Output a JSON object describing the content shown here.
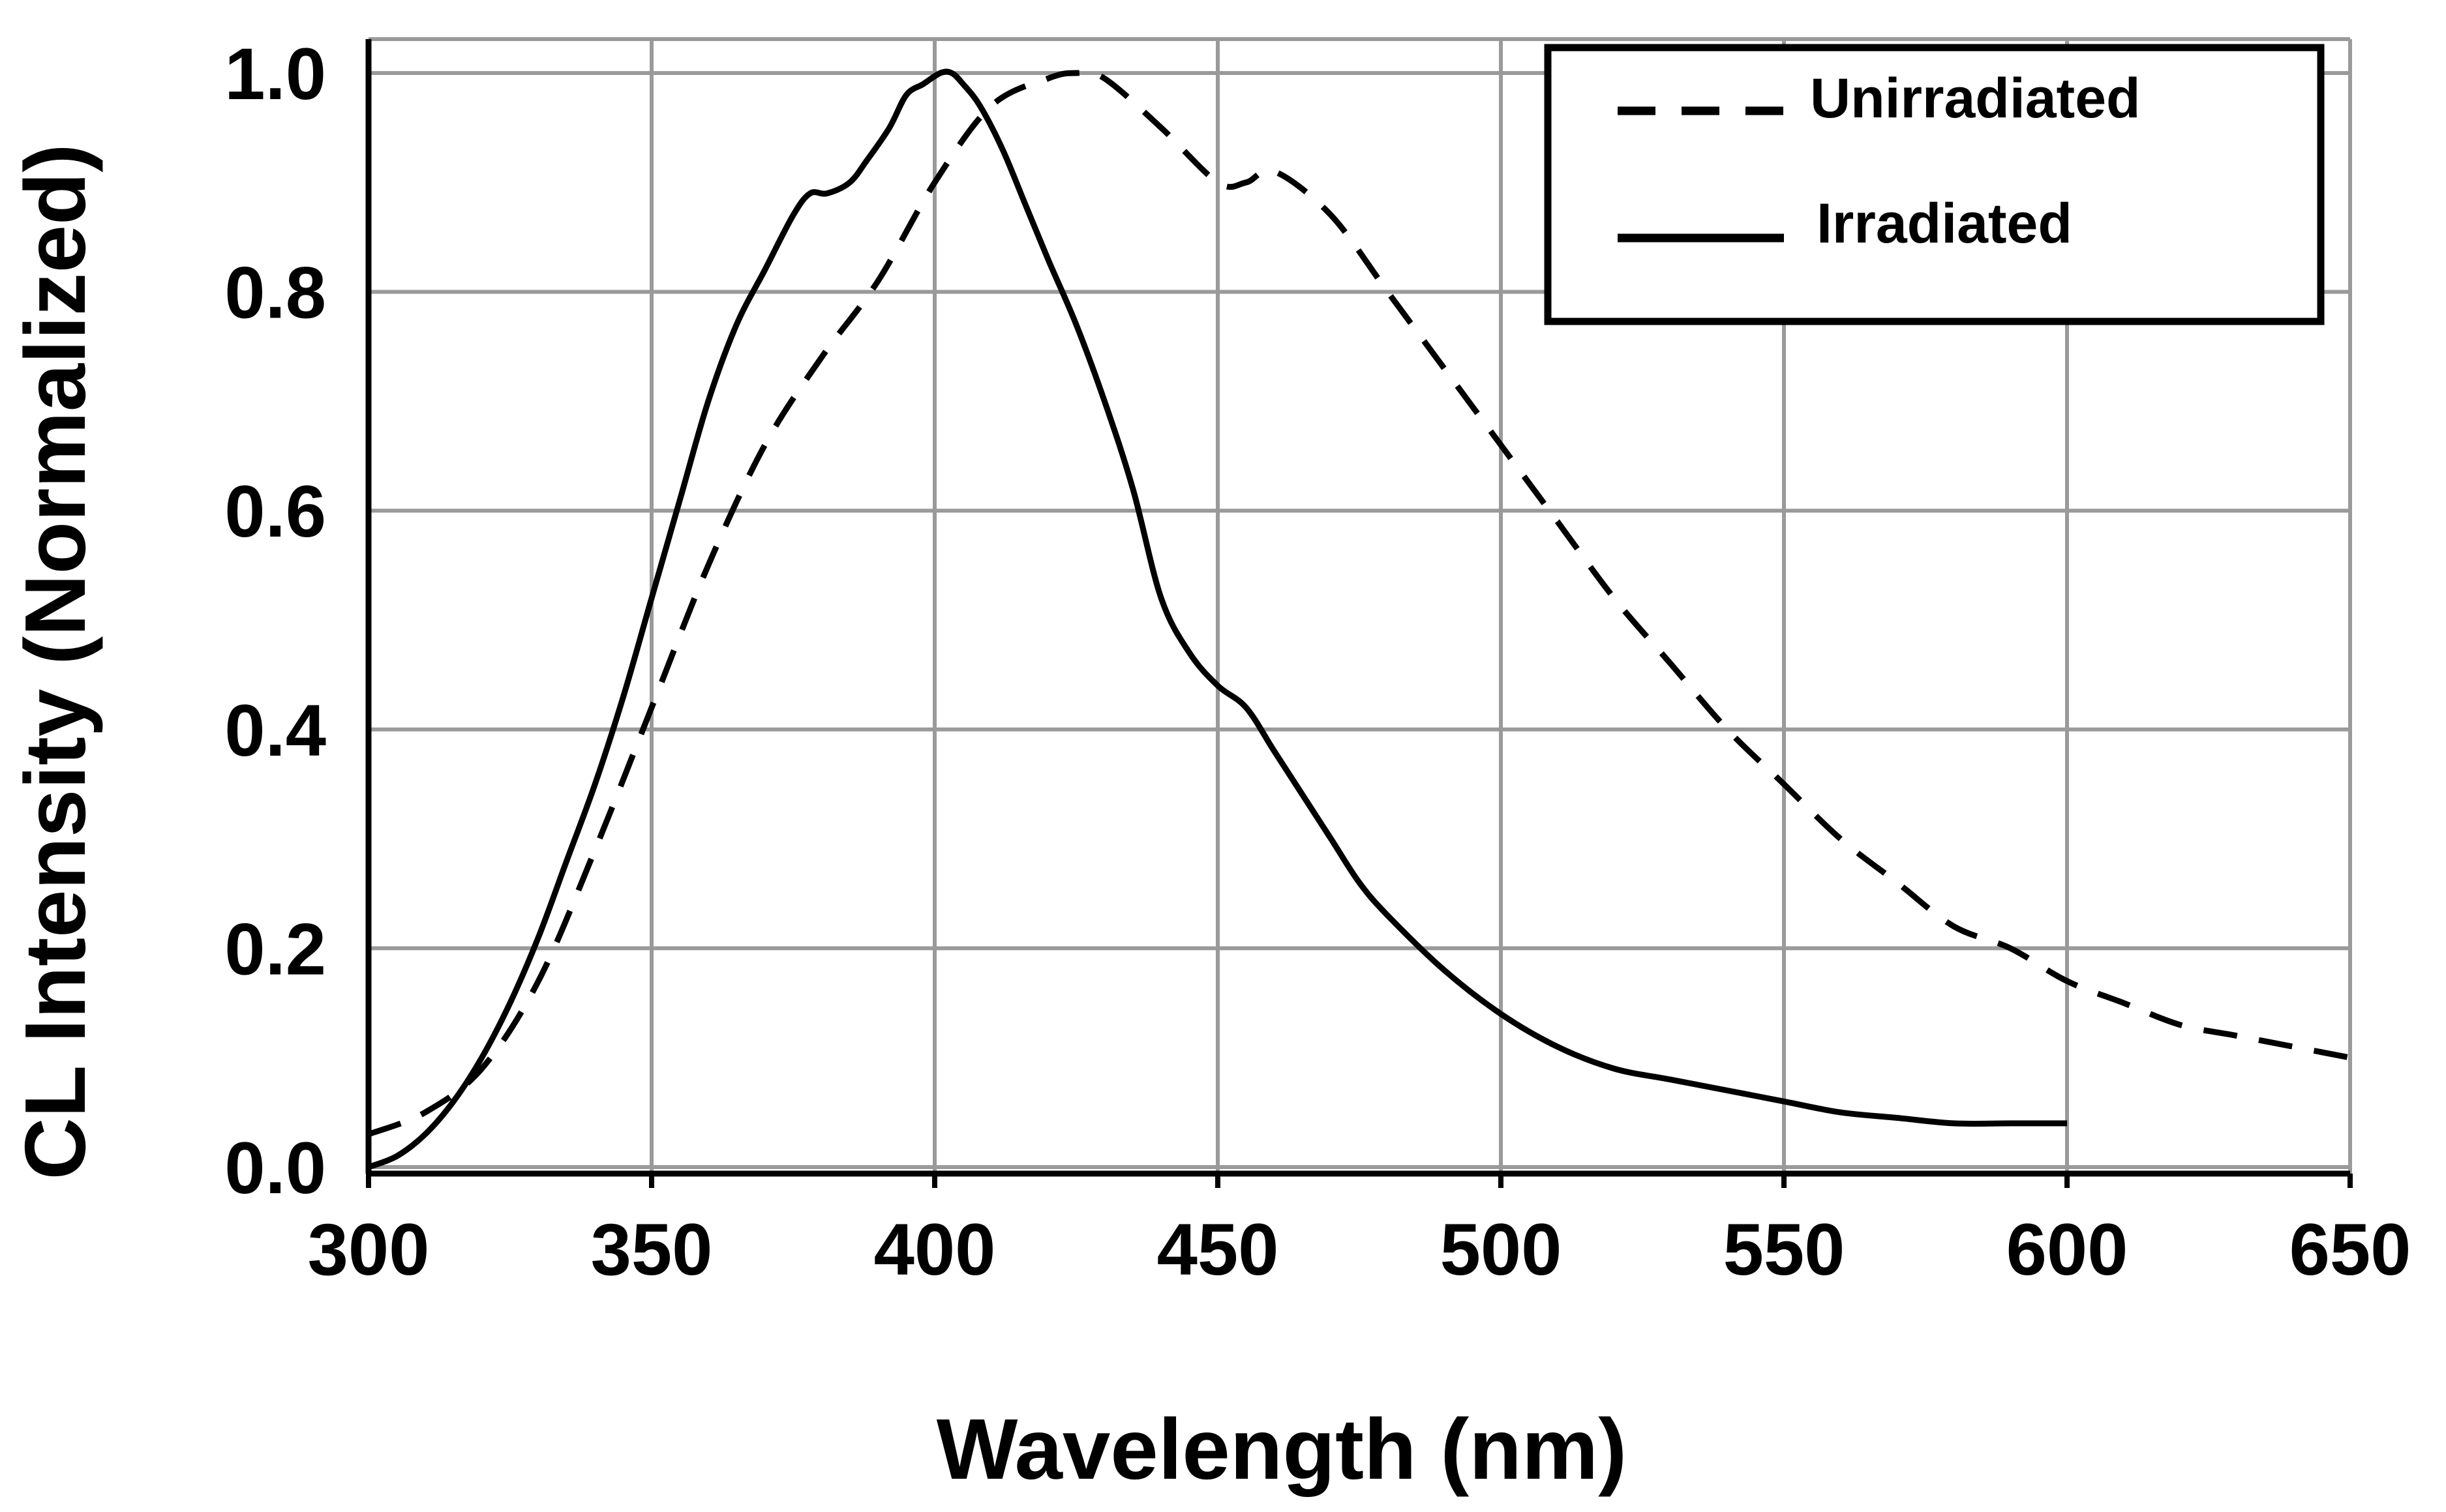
{
  "chart_data": {
    "type": "line",
    "title": "",
    "xlabel": "Wavelength (nm)",
    "ylabel": "CL Intensity (Normalized)",
    "xlim": [
      300,
      650
    ],
    "ylim": [
      0,
      1
    ],
    "grid": true,
    "legend_position": "top-right",
    "x_ticks": [
      300,
      350,
      400,
      450,
      500,
      550,
      600,
      650
    ],
    "x_tick_labels": [
      "300",
      "350",
      "400",
      "450",
      "500",
      "550",
      "600",
      "650"
    ],
    "y_ticks": [
      0,
      0.2,
      0.4,
      0.6,
      0.8,
      1.0
    ],
    "y_tick_labels": [
      "0.0",
      "0.2",
      "0.4",
      "0.6",
      "0.8",
      "1.0"
    ],
    "series": [
      {
        "name": "Unirradiated",
        "style": "dashed",
        "color": "#000000",
        "x": [
          300,
          310,
          320,
          330,
          340,
          350,
          360,
          370,
          380,
          390,
          400,
          410,
          420,
          425,
          430,
          440,
          450,
          455,
          460,
          470,
          480,
          490,
          500,
          510,
          520,
          530,
          540,
          550,
          560,
          570,
          580,
          590,
          600,
          610,
          620,
          630,
          640,
          650
        ],
        "y": [
          0.03,
          0.05,
          0.09,
          0.17,
          0.29,
          0.42,
          0.55,
          0.66,
          0.74,
          0.81,
          0.9,
          0.97,
          0.995,
          1.0,
          0.995,
          0.95,
          0.9,
          0.9,
          0.91,
          0.87,
          0.8,
          0.73,
          0.66,
          0.59,
          0.52,
          0.46,
          0.4,
          0.35,
          0.3,
          0.26,
          0.22,
          0.2,
          0.17,
          0.15,
          0.13,
          0.12,
          0.11,
          0.1
        ]
      },
      {
        "name": "Irradiated",
        "style": "solid",
        "color": "#000000",
        "x": [
          300,
          305,
          310,
          315,
          320,
          325,
          330,
          335,
          340,
          345,
          350,
          355,
          360,
          365,
          370,
          375,
          378,
          381,
          385,
          388,
          392,
          395,
          398,
          401,
          403,
          405,
          408,
          412,
          416,
          420,
          425,
          430,
          435,
          440,
          445,
          450,
          455,
          460,
          465,
          470,
          475,
          480,
          490,
          500,
          510,
          520,
          530,
          540,
          550,
          560,
          570,
          580,
          590,
          600
        ],
        "y": [
          0.0,
          0.01,
          0.03,
          0.06,
          0.1,
          0.15,
          0.21,
          0.28,
          0.35,
          0.43,
          0.52,
          0.61,
          0.7,
          0.77,
          0.82,
          0.87,
          0.89,
          0.89,
          0.9,
          0.92,
          0.95,
          0.98,
          0.99,
          1.0,
          1.0,
          0.99,
          0.97,
          0.93,
          0.88,
          0.83,
          0.77,
          0.7,
          0.62,
          0.52,
          0.47,
          0.44,
          0.42,
          0.38,
          0.34,
          0.3,
          0.26,
          0.23,
          0.18,
          0.14,
          0.11,
          0.09,
          0.08,
          0.07,
          0.06,
          0.05,
          0.045,
          0.04,
          0.04,
          0.04
        ]
      }
    ]
  },
  "colors": {
    "grid": "#9a9a9a",
    "axis": "#000000",
    "line": "#000000"
  }
}
